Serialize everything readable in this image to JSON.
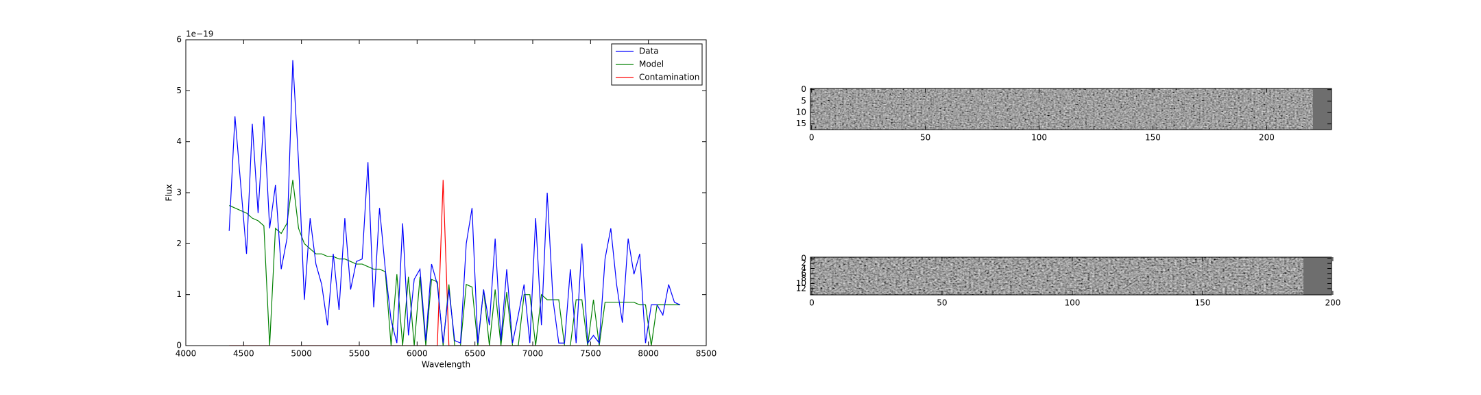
{
  "chart_data": [
    {
      "type": "line",
      "xlabel": "Wavelength",
      "ylabel": "Flux",
      "offset_text": "1e−19",
      "x": [
        4375,
        4425,
        4475,
        4525,
        4575,
        4625,
        4675,
        4725,
        4775,
        4825,
        4875,
        4925,
        4975,
        5025,
        5075,
        5125,
        5175,
        5225,
        5275,
        5325,
        5375,
        5425,
        5475,
        5525,
        5575,
        5625,
        5675,
        5725,
        5775,
        5825,
        5875,
        5925,
        5975,
        6025,
        6075,
        6125,
        6175,
        6225,
        6275,
        6325,
        6375,
        6425,
        6475,
        6525,
        6575,
        6625,
        6675,
        6725,
        6775,
        6825,
        6875,
        6925,
        6975,
        7025,
        7075,
        7125,
        7175,
        7225,
        7275,
        7325,
        7375,
        7425,
        7475,
        7525,
        7575,
        7625,
        7675,
        7725,
        7775,
        7825,
        7875,
        7925,
        7975,
        8025,
        8075,
        8125,
        8175,
        8225,
        8275
      ],
      "series": [
        {
          "name": "Data",
          "color": "#0000ff",
          "values": [
            2.25,
            4.5,
            3.15,
            1.8,
            4.35,
            2.6,
            4.5,
            2.3,
            3.15,
            1.5,
            2.1,
            5.6,
            3.6,
            0.9,
            2.5,
            1.6,
            1.2,
            0.4,
            1.8,
            0.7,
            2.5,
            1.1,
            1.65,
            1.7,
            3.6,
            0.75,
            2.7,
            1.5,
            0.5,
            0.05,
            2.4,
            0.2,
            1.3,
            1.5,
            0.1,
            1.6,
            1.2,
            0.05,
            1.1,
            0.1,
            0.05,
            2.0,
            2.7,
            0.05,
            1.1,
            0.4,
            2.1,
            0.1,
            1.5,
            0.05,
            0.6,
            1.2,
            0.05,
            2.5,
            0.4,
            3.0,
            0.9,
            0.05,
            0.05,
            1.5,
            0.05,
            2.0,
            0.05,
            0.2,
            0.05,
            1.7,
            2.3,
            1.2,
            0.45,
            2.1,
            1.4,
            1.8,
            0.05,
            0.8,
            0.8,
            0.6,
            1.2,
            0.85,
            0.8
          ]
        },
        {
          "name": "Model",
          "color": "#008000",
          "values": [
            2.75,
            2.7,
            2.65,
            2.6,
            2.5,
            2.45,
            2.35,
            0,
            2.3,
            2.2,
            2.4,
            3.25,
            2.3,
            2.0,
            1.9,
            1.8,
            1.8,
            1.75,
            1.75,
            1.7,
            1.7,
            1.65,
            1.6,
            1.6,
            1.55,
            1.5,
            1.5,
            1.45,
            0,
            1.4,
            0,
            1.35,
            0,
            1.35,
            0,
            1.3,
            1.25,
            0,
            1.2,
            0,
            0,
            1.2,
            1.15,
            0,
            1.1,
            0,
            1.1,
            0,
            1.05,
            0,
            0,
            1.0,
            1.0,
            0,
            1.0,
            0.9,
            0.9,
            0.9,
            0,
            0,
            0.9,
            0.9,
            0,
            0.9,
            0,
            0.85,
            0.85,
            0.85,
            0.85,
            0.85,
            0.85,
            0.8,
            0.8,
            0,
            0.8,
            0.8,
            0.8,
            0.8,
            0.8
          ]
        },
        {
          "name": "Contamination",
          "color": "#ff0000",
          "values": [
            0,
            0,
            0,
            0,
            0,
            0,
            0,
            0,
            0,
            0,
            0,
            0,
            0,
            0,
            0,
            0,
            0,
            0,
            0,
            0,
            0,
            0,
            0,
            0,
            0,
            0,
            0,
            0,
            0,
            0,
            0,
            0,
            0,
            0,
            0,
            0,
            0,
            3.25,
            0,
            0,
            0,
            0,
            0,
            0,
            0,
            0,
            0,
            0,
            0,
            0,
            0,
            0,
            0,
            0,
            0,
            0,
            0,
            0,
            0,
            0,
            0,
            0,
            0,
            0,
            0,
            0,
            0,
            0,
            0,
            0,
            0,
            0,
            0,
            0,
            0,
            0,
            0,
            0,
            0
          ]
        }
      ],
      "xlim": [
        4000,
        8500
      ],
      "xticks": [
        4000,
        4500,
        5000,
        5500,
        6000,
        6500,
        7000,
        7500,
        8000,
        8500
      ],
      "ylim": [
        0,
        6
      ],
      "yticks": [
        0,
        1,
        2,
        3,
        4,
        5,
        6
      ],
      "legend": "upper right"
    },
    {
      "type": "image",
      "xlim": [
        -0.5,
        228.5
      ],
      "ylim": [
        17.5,
        -0.5
      ],
      "xticks": [
        0,
        50,
        100,
        150,
        200
      ],
      "yticks": [
        0,
        5,
        10,
        15
      ]
    },
    {
      "type": "image",
      "xlim": [
        -0.5,
        199.5
      ],
      "ylim": [
        14.5,
        -0.5
      ],
      "xticks": [
        0,
        50,
        100,
        150,
        200
      ],
      "yticks": [
        0,
        2,
        4,
        6,
        8,
        10,
        12
      ]
    }
  ]
}
